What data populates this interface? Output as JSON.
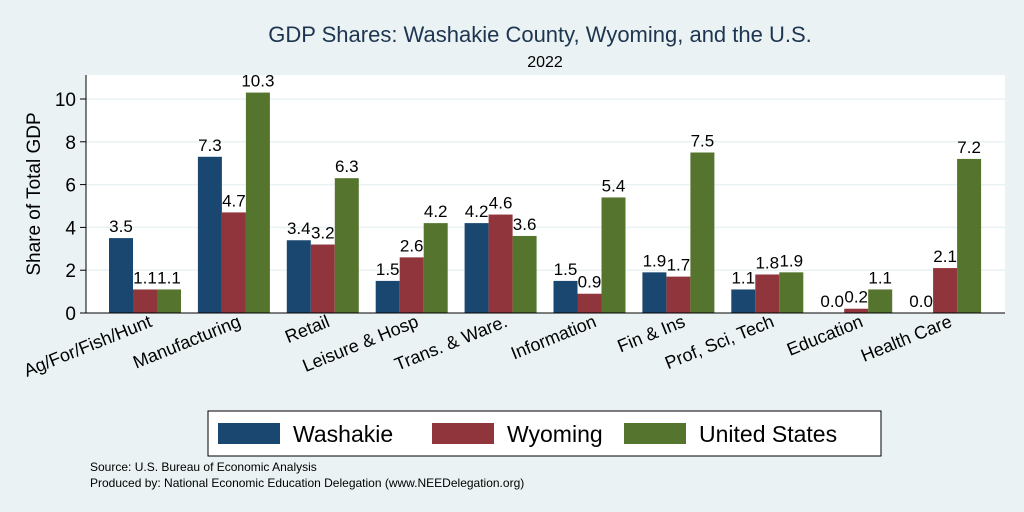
{
  "chart_data": {
    "type": "bar",
    "title": "GDP Shares: Washakie County, Wyoming, and the U.S.",
    "subtitle": "2022",
    "xlabel": "",
    "ylabel": "Share of Total GDP",
    "ylim": [
      0,
      11
    ],
    "yticks": [
      0,
      2,
      4,
      6,
      8,
      10
    ],
    "grid": true,
    "legend_position": "bottom",
    "categories": [
      "Ag/For/Fish/Hunt",
      "Manufacturing",
      "Retail",
      "Leisure & Hosp",
      "Trans. & Ware.",
      "Information",
      "Fin & Ins",
      "Prof, Sci, Tech",
      "Education",
      "Health Care"
    ],
    "series": [
      {
        "name": "Washakie",
        "color": "#1a476f",
        "values": [
          3.5,
          7.3,
          3.4,
          1.5,
          4.2,
          1.5,
          1.9,
          1.1,
          0.0,
          0.0
        ]
      },
      {
        "name": "Wyoming",
        "color": "#90353b",
        "values": [
          1.1,
          4.7,
          3.2,
          2.6,
          4.6,
          0.9,
          1.7,
          1.8,
          0.2,
          2.1
        ]
      },
      {
        "name": "United States",
        "color": "#55752f",
        "values": [
          1.1,
          10.3,
          6.3,
          4.2,
          3.6,
          5.4,
          7.5,
          1.9,
          1.1,
          7.2
        ]
      }
    ]
  },
  "notes": {
    "source": "Source: U.S. Bureau of Economic Analysis",
    "produced": "Produced by: National Economic Education Delegation (www.NEEDelegation.org)"
  }
}
